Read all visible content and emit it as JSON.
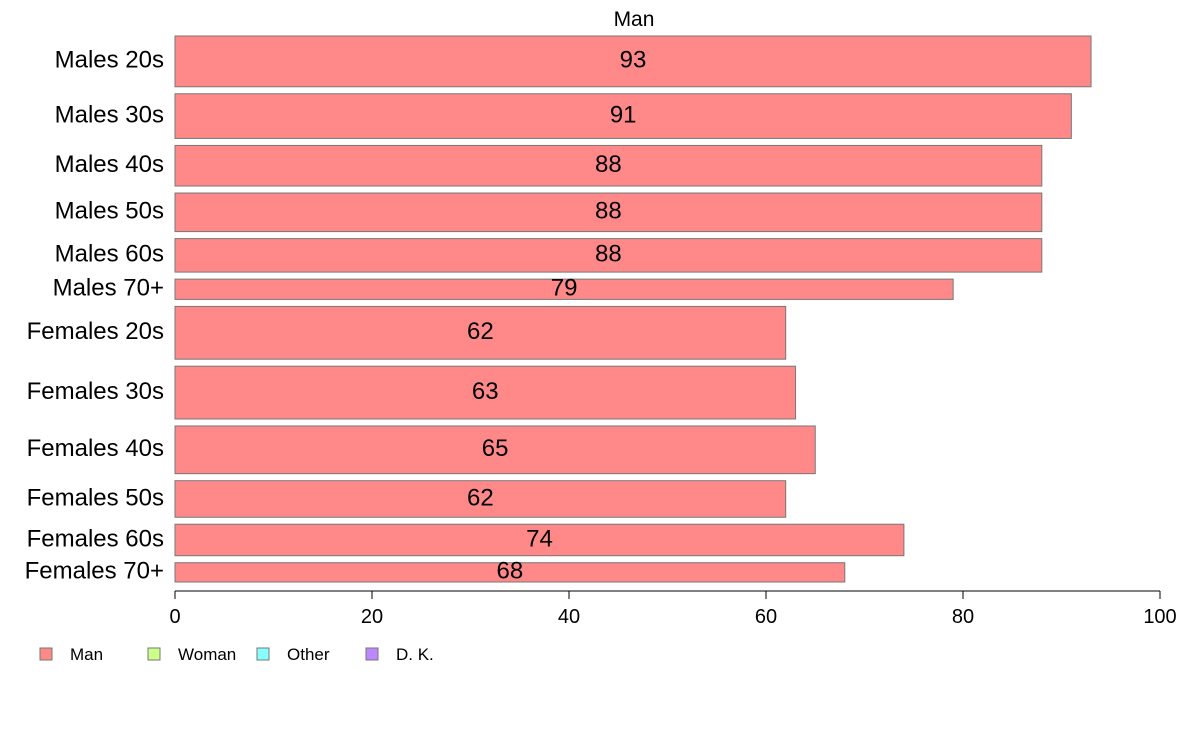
{
  "chart_data": {
    "type": "bar",
    "orientation": "horizontal",
    "title": "Man",
    "categories": [
      "Males 20s",
      "Males 30s",
      "Males 40s",
      "Males 50s",
      "Males 60s",
      "Males 70+",
      "Females 20s",
      "Females 30s",
      "Females 40s",
      "Females 50s",
      "Females 60s",
      "Females 70+"
    ],
    "weights": [
      50,
      44,
      40,
      38,
      33,
      20,
      52,
      52,
      47,
      36,
      31,
      19
    ],
    "series": [
      {
        "name": "Man",
        "color": "#ff8888",
        "values": [
          93,
          91,
          88,
          88,
          88,
          79,
          62,
          63,
          65,
          62,
          74,
          68
        ]
      }
    ],
    "value_labels": [
      "93",
      "91",
      "88",
      "88",
      "88",
      "79",
      "62",
      "63",
      "65",
      "62",
      "74",
      "68"
    ],
    "xlim": [
      0,
      100
    ],
    "xticks": [
      "0",
      "20",
      "40",
      "60",
      "80",
      "100"
    ],
    "xtick_values": [
      0,
      20,
      40,
      60,
      80,
      100
    ],
    "grid": false,
    "legend": {
      "placement": "bottom-left",
      "entries": [
        {
          "name": "Man",
          "color": "#ff8888"
        },
        {
          "name": "Woman",
          "color": "#ccff88"
        },
        {
          "name": "Other",
          "color": "#88ffff"
        },
        {
          "name": "D. K.",
          "color": "#bb88ff"
        }
      ]
    }
  }
}
